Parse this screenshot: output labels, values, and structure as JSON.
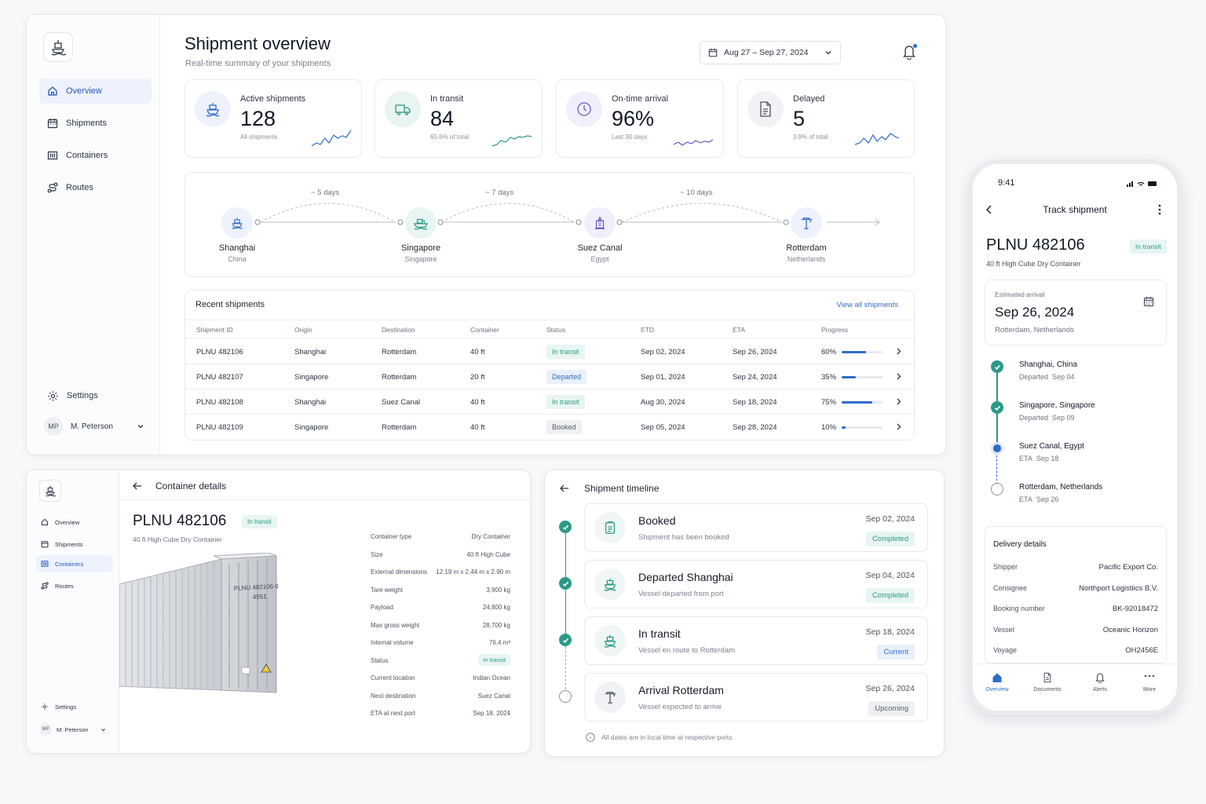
{
  "colors": {
    "accent": "#2f6cc7",
    "teal": "#2b9a86",
    "notification": "#2f6cc7"
  },
  "dashboard": {
    "title": "Shipment overview",
    "subtitle": "Real-time summary of your shipments",
    "date_range": "Aug 27 – Sep 27, 2024",
    "nav": [
      {
        "label": "Overview",
        "icon": "home-icon",
        "active": true
      },
      {
        "label": "Shipments",
        "icon": "calendar-icon"
      },
      {
        "label": "Containers",
        "icon": "container-icon"
      },
      {
        "label": "Routes",
        "icon": "route-icon"
      }
    ],
    "settings_label": "Settings",
    "user": {
      "initials": "MP",
      "name": "M. Peterson"
    },
    "kpis": [
      {
        "label": "Active shipments",
        "value": "128",
        "sub": "All shipments",
        "icon": "ship-icon"
      },
      {
        "label": "In transit",
        "value": "84",
        "sub": "65.6% of total",
        "icon": "truck-icon"
      },
      {
        "label": "On-time arrival",
        "value": "96%",
        "sub": "Last 30 days",
        "icon": "clock-icon"
      },
      {
        "label": "Delayed",
        "value": "5",
        "sub": "3.9% of total",
        "icon": "document-icon"
      }
    ],
    "route": {
      "stops": [
        {
          "name": "Shanghai",
          "country": "China",
          "icon": "ship-icon"
        },
        {
          "name": "Singapore",
          "country": "Singapore",
          "icon": "vessel-icon"
        },
        {
          "name": "Suez Canal",
          "country": "Egypt",
          "icon": "canal-icon"
        },
        {
          "name": "Rotterdam",
          "country": "Netherlands",
          "icon": "crane-icon"
        }
      ],
      "legs": [
        "~ 5 days",
        "~ 7 days",
        "~ 10 days"
      ]
    },
    "recent": {
      "title": "Recent shipments",
      "view_all": "View all shipments",
      "columns": [
        "Shipment ID",
        "Origin",
        "Destination",
        "Container",
        "Status",
        "ETD",
        "ETA",
        "Progress"
      ],
      "rows": [
        {
          "id": "PLNU 482106",
          "origin": "Shanghai",
          "dest": "Rotterdam",
          "container": "40 ft",
          "status": "In transit",
          "status_kind": "transit",
          "etd": "Sep 02, 2024",
          "eta": "Sep 26, 2024",
          "progress": "60%",
          "progress_value": 0.6
        },
        {
          "id": "PLNU 482107",
          "origin": "Singapore",
          "dest": "Rotterdam",
          "container": "20 ft",
          "status": "Departed",
          "status_kind": "departed",
          "etd": "Sep 01, 2024",
          "eta": "Sep 24, 2024",
          "progress": "35%",
          "progress_value": 0.35
        },
        {
          "id": "PLNU 482108",
          "origin": "Shanghai",
          "dest": "Suez Canal",
          "container": "40 ft",
          "status": "In transit",
          "status_kind": "transit",
          "etd": "Aug 30, 2024",
          "eta": "Sep 18, 2024",
          "progress": "75%",
          "progress_value": 0.75
        },
        {
          "id": "PLNU 482109",
          "origin": "Singapore",
          "dest": "Rotterdam",
          "container": "40 ft",
          "status": "Booked",
          "status_kind": "booked",
          "etd": "Sep 05, 2024",
          "eta": "Sep 28, 2024",
          "progress": "10%",
          "progress_value": 0.1
        }
      ]
    }
  },
  "container": {
    "header": "Container details",
    "nav": [
      {
        "label": "Overview",
        "icon": "home-icon"
      },
      {
        "label": "Shipments",
        "icon": "calendar-icon"
      },
      {
        "label": "Containers",
        "icon": "container-icon",
        "active": true
      },
      {
        "label": "Routes",
        "icon": "route-icon"
      }
    ],
    "settings_label": "Settings",
    "user": {
      "initials": "MP",
      "name": "M. Peterson"
    },
    "id": "PLNU 482106",
    "status": "In transit",
    "type_desc": "40 ft High Cube Dry Container",
    "door_code": "PLNU 482106 0",
    "door_code2": "4551",
    "specs": [
      {
        "k": "Container type",
        "v": "Dry Container"
      },
      {
        "k": "Size",
        "v": "40 ft High Cube"
      },
      {
        "k": "External dimensions",
        "v": "12.19 m x 2.44 m x 2.90 m"
      },
      {
        "k": "Tare weight",
        "v": "3,900 kg"
      },
      {
        "k": "Payload",
        "v": "24,800 kg"
      },
      {
        "k": "Max gross weight",
        "v": "28,700 kg"
      },
      {
        "k": "Internal volume",
        "v": "76.4 m³"
      },
      {
        "k": "Status",
        "v": "In transit"
      },
      {
        "k": "Current location",
        "v": "Indian Ocean"
      },
      {
        "k": "Next destination",
        "v": "Suez Canal"
      },
      {
        "k": "ETA at next port",
        "v": "Sep 18, 2024"
      }
    ]
  },
  "timeline": {
    "header": "Shipment timeline",
    "items": [
      {
        "title": "Booked",
        "sub": "Shipment has been booked",
        "date": "Sep 02, 2024",
        "badge": "Completed",
        "kind": "completed",
        "icon": "clipboard-icon",
        "done": true
      },
      {
        "title": "Departed Shanghai",
        "sub": "Vessel departed from port",
        "date": "Sep 04, 2024",
        "badge": "Completed",
        "kind": "completed",
        "icon": "ship-icon",
        "done": true
      },
      {
        "title": "In transit",
        "sub": "Vessel en route to Rotterdam",
        "date": "Sep 18, 2024",
        "badge": "Current",
        "kind": "current",
        "icon": "ship-icon",
        "done": true
      },
      {
        "title": "Arrival Rotterdam",
        "sub": "Vessel expected to arrive",
        "date": "Sep 26, 2024",
        "badge": "Upcoming",
        "kind": "upcoming",
        "icon": "crane-icon",
        "done": false
      }
    ],
    "note": "All dates are in local time at respective ports"
  },
  "mobile": {
    "time": "9:41",
    "title": "Track shipment",
    "id": "PLNU 482106",
    "status": "In transit",
    "type_desc": "40 ft High Cube Dry Container",
    "eta_label": "Estimated arrival",
    "eta_date": "Sep 26, 2024",
    "eta_place": "Rotterdam, Netherlands",
    "stops": [
      {
        "place": "Shanghai, China",
        "label": "Departed",
        "date": "Sep 04",
        "state": "done"
      },
      {
        "place": "Singapore, Singapore",
        "label": "Departed",
        "date": "Sep 09",
        "state": "done"
      },
      {
        "place": "Suez Canal, Egypt",
        "label": "ETA",
        "date": "Sep 18",
        "state": "current"
      },
      {
        "place": "Rotterdam, Netherlands",
        "label": "ETA",
        "date": "Sep 26",
        "state": "upcoming"
      }
    ],
    "delivery_title": "Delivery details",
    "delivery": [
      {
        "k": "Shipper",
        "v": "Pacific Export Co."
      },
      {
        "k": "Consignee",
        "v": "Northport Logistiics B.V."
      },
      {
        "k": "Booking number",
        "v": "BK-92018472"
      },
      {
        "k": "Vessel",
        "v": "Oceanic Horizon"
      },
      {
        "k": "Voyage",
        "v": "OH2456E"
      }
    ],
    "tabs": [
      {
        "label": "Overview",
        "icon": "home-icon",
        "active": true
      },
      {
        "label": "Documents",
        "icon": "document-icon"
      },
      {
        "label": "Alerts",
        "icon": "bell-icon"
      },
      {
        "label": "More",
        "icon": "more-icon"
      }
    ]
  }
}
